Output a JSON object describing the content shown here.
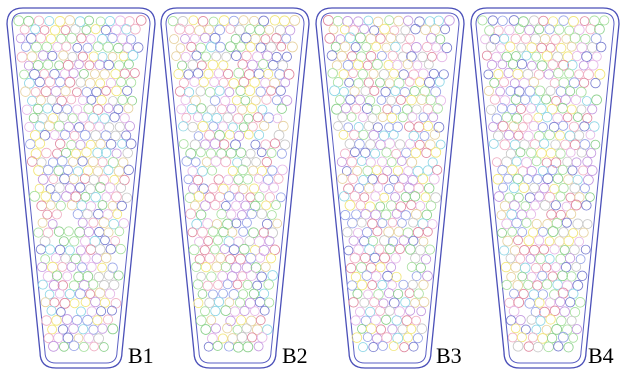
{
  "figure": {
    "panels": [
      {
        "id": "b1",
        "label": "B1",
        "seed": 11
      },
      {
        "id": "b2",
        "label": "B2",
        "seed": 23
      },
      {
        "id": "b3",
        "label": "B3",
        "seed": 37
      },
      {
        "id": "b4",
        "label": "B4",
        "seed": 53
      }
    ],
    "particle_colors": [
      "#e08aa0",
      "#9aa6e8",
      "#8cd08c",
      "#f2e67a",
      "#8ed6e6",
      "#c49ae0",
      "#f0b0c4",
      "#7b7fd0",
      "#a8e0a0",
      "#e6b8e8",
      "#c8c8c8",
      "#e7d2a0"
    ],
    "container_stroke": "#4a4fb8",
    "background": "#ffffff"
  }
}
